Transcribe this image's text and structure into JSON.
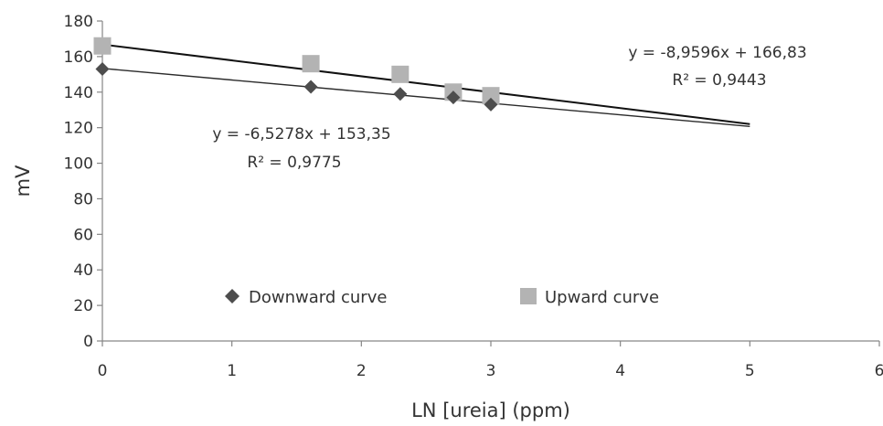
{
  "chart_data": {
    "type": "scatter",
    "xlabel": "LN [ureia] (ppm)",
    "ylabel": "mV",
    "xlim": [
      0,
      6
    ],
    "ylim": [
      0,
      180
    ],
    "x_ticks": [
      0,
      1,
      2,
      3,
      4,
      5,
      6
    ],
    "y_ticks": [
      0,
      20,
      40,
      60,
      80,
      100,
      120,
      140,
      160,
      180
    ],
    "grid": false,
    "legend_position": "bottom-center",
    "series": [
      {
        "name": "Downward curve",
        "marker": "diamond",
        "color": "#4d4d4d",
        "x": [
          0,
          1.61,
          2.3,
          2.71,
          3.0
        ],
        "y": [
          153,
          143,
          139,
          137,
          133
        ],
        "trendline": {
          "slope": -6.5278,
          "intercept": 153.35,
          "x_range": [
            0,
            5
          ],
          "equation": "y = -6,5278x + 153,35",
          "r2": "R² = 0,9775"
        }
      },
      {
        "name": "Upward curve",
        "marker": "square",
        "color": "#b3b3b3",
        "x": [
          0,
          1.61,
          2.3,
          2.71,
          3.0
        ],
        "y": [
          166,
          156,
          150,
          140,
          138
        ],
        "trendline": {
          "slope": -8.9596,
          "intercept": 166.83,
          "x_range": [
            0,
            5
          ],
          "equation": "y = -8,9596x + 166,83",
          "r2": "R² = 0,9443"
        }
      }
    ]
  }
}
